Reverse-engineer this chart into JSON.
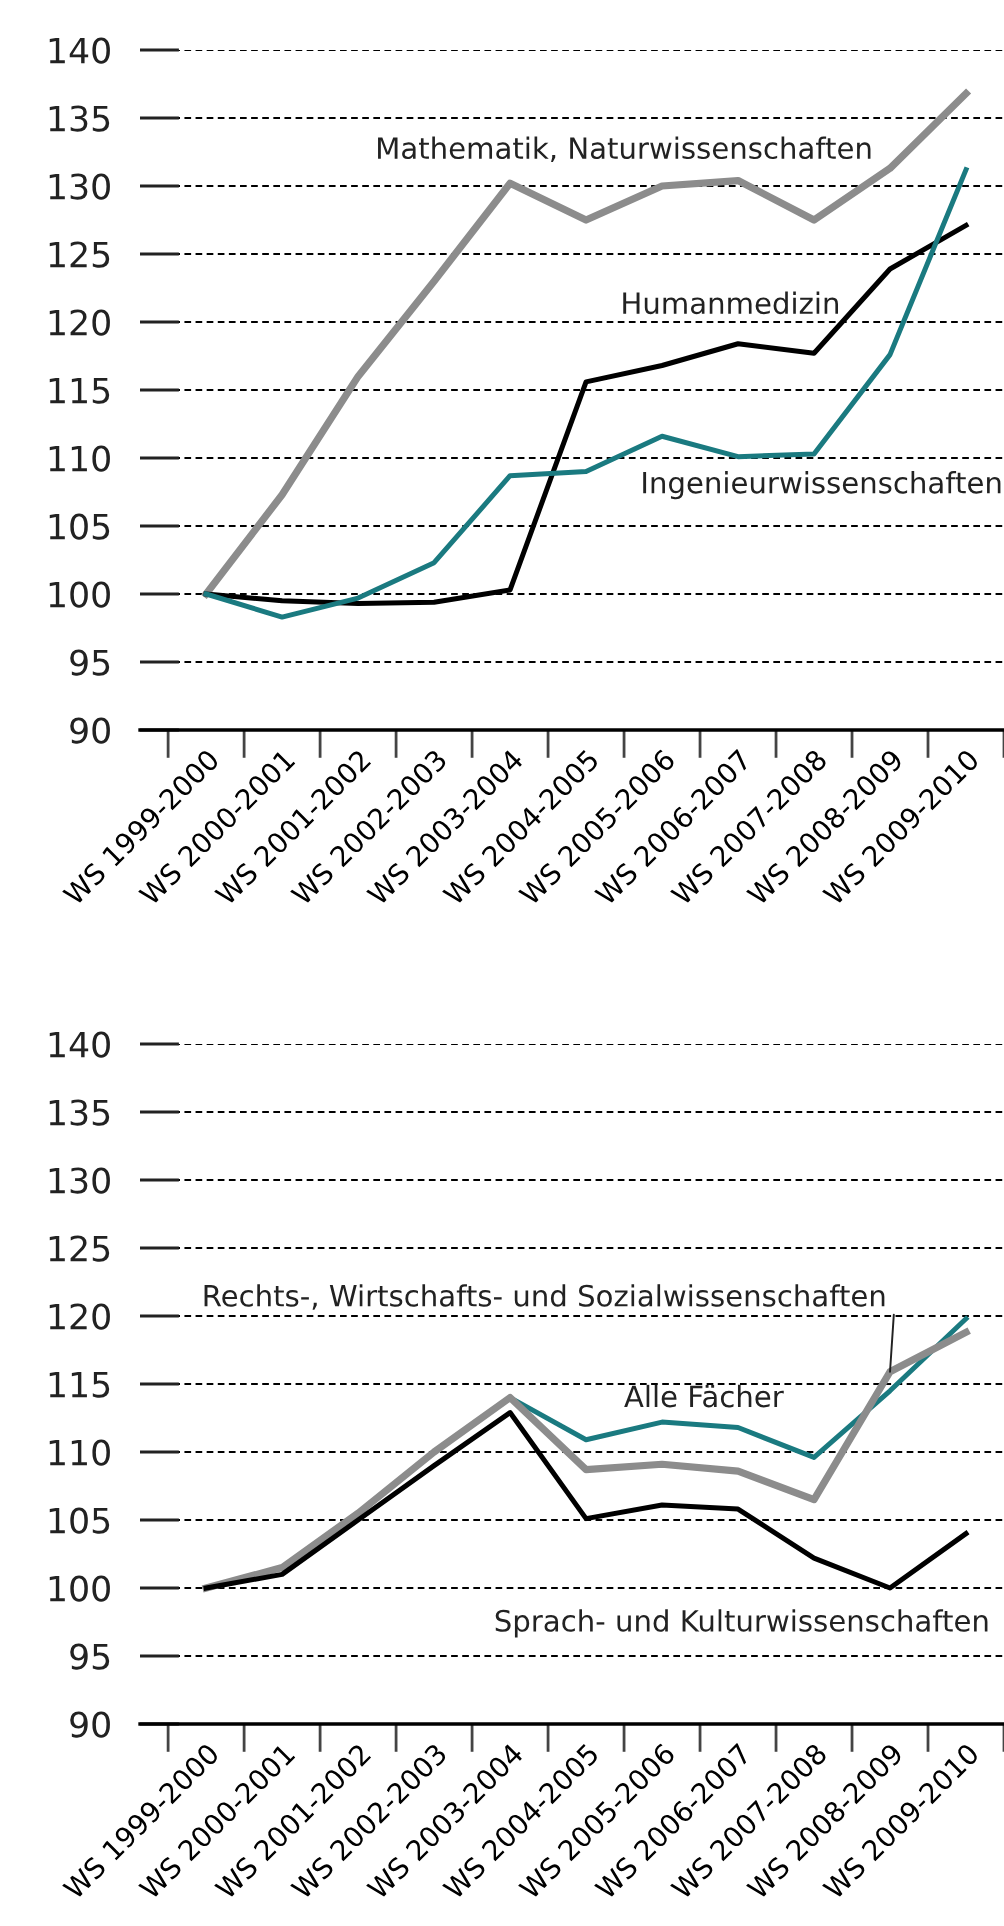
{
  "chart_data": [
    {
      "type": "line",
      "categories": [
        "WS 1999-2000",
        "WS 2000-2001",
        "WS 2001-2002",
        "WS 2002-2003",
        "WS 2003-2004",
        "WS 2004-2005",
        "WS 2005-2006",
        "WS 2006-2007",
        "WS 2007-2008",
        "WS 2008-2009",
        "WS 2009-2010"
      ],
      "series": [
        {
          "name": "Mathematik, Naturwissenschaften",
          "color": "#8c8c8c",
          "values": [
            100,
            107.3,
            116,
            123,
            130.2,
            127.5,
            130,
            130.4,
            127.5,
            131.3,
            136.8
          ]
        },
        {
          "name": "Humanmedizin",
          "color": "#000000",
          "values": [
            100,
            99.5,
            99.3,
            99.4,
            100.3,
            115.6,
            116.8,
            118.4,
            117.7,
            123.9,
            127.1
          ]
        },
        {
          "name": "Ingenieurwissenschaften",
          "color": "#1a7a80",
          "values": [
            100,
            98.3,
            99.7,
            102.3,
            108.7,
            109,
            111.6,
            110.1,
            110.3,
            117.6,
            131.2
          ]
        }
      ],
      "ylim": [
        90,
        140
      ],
      "yticks": [
        90,
        95,
        100,
        105,
        110,
        115,
        120,
        125,
        130,
        135,
        140
      ],
      "grid": "y"
    },
    {
      "type": "line",
      "categories": [
        "WS 1999-2000",
        "WS 2000-2001",
        "WS 2001-2002",
        "WS 2002-2003",
        "WS 2003-2004",
        "WS 2004-2005",
        "WS 2005-2006",
        "WS 2006-2007",
        "WS 2007-2008",
        "WS 2008-2009",
        "WS 2009-2010"
      ],
      "series": [
        {
          "name": "Alle Fächer",
          "color": "#1a7a80",
          "values": [
            100,
            101.5,
            105.5,
            110,
            114,
            110.9,
            112.2,
            111.8,
            109.6,
            114.5,
            119.8
          ]
        },
        {
          "name": "Rechts-, Wirtschafts- und Sozialwissenschaften",
          "color": "#8c8c8c",
          "values": [
            100,
            101.5,
            105.5,
            110,
            114,
            108.7,
            109.1,
            108.6,
            106.5,
            115.9,
            118.8
          ]
        },
        {
          "name": "Sprach- und Kulturwissenschaften",
          "color": "#000000",
          "values": [
            100,
            101,
            105,
            109,
            112.9,
            105.1,
            106.1,
            105.8,
            102.2,
            100,
            104
          ]
        }
      ],
      "ylim": [
        90,
        140
      ],
      "yticks": [
        90,
        95,
        100,
        105,
        110,
        115,
        120,
        125,
        130,
        135,
        140
      ],
      "grid": "y"
    }
  ]
}
